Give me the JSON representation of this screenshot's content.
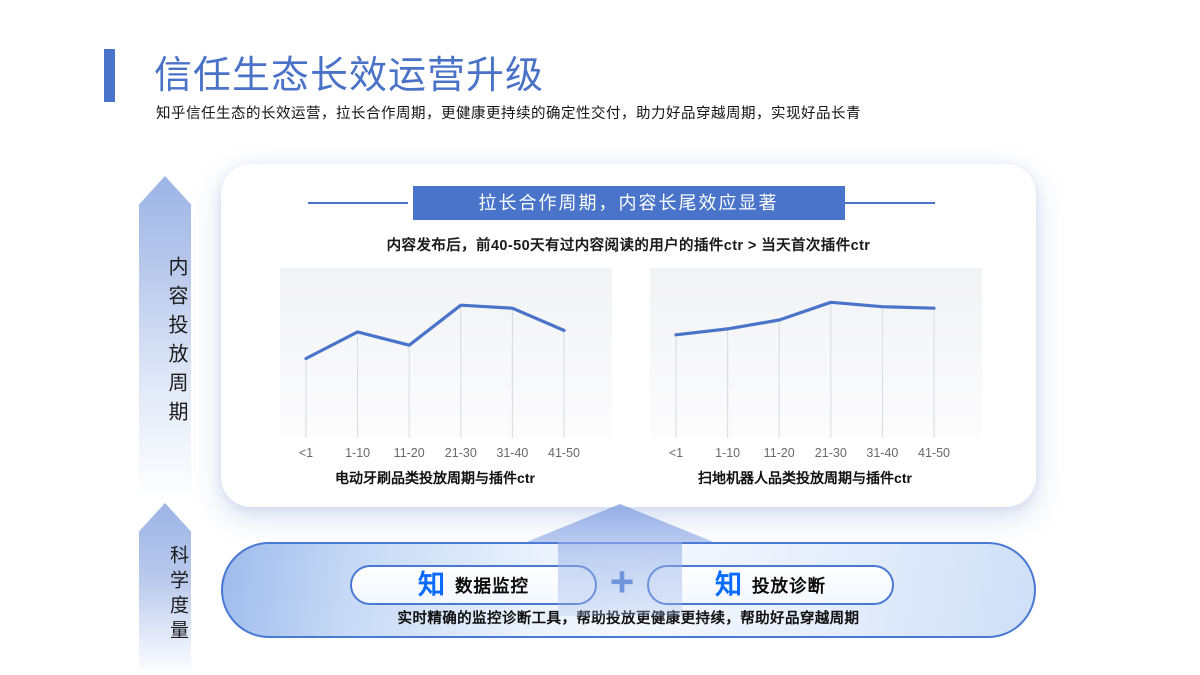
{
  "page": {
    "title": "信任生态长效运营升级",
    "subtitle": "知乎信任生态的长效运营，拉长合作周期，更健康更持续的确定性交付，助力好品穿越周期，实现好品长青"
  },
  "side_arrows": {
    "top_label": "内容投放周期",
    "bottom_label": "科学度量"
  },
  "card": {
    "banner_title": "拉长合作周期，内容长尾效应显著",
    "statement": "内容发布后，前40-50天有过内容阅读的用户的插件ctr > 当天首次插件ctr"
  },
  "chart_data": [
    {
      "type": "line",
      "title": "电动牙刷品类投放周期与插件ctr",
      "categories": [
        "<1",
        "1-10",
        "11-20",
        "21-30",
        "31-40",
        "41-50"
      ],
      "values": [
        0.51,
        0.69,
        0.6,
        0.87,
        0.85,
        0.7
      ],
      "ylim": [
        0,
        1
      ],
      "grid": "drop-lines",
      "line_color": "#4a74c9"
    },
    {
      "type": "line",
      "title": "扫地机器人品类投放周期与插件ctr",
      "categories": [
        "<1",
        "1-10",
        "11-20",
        "21-30",
        "31-40",
        "41-50"
      ],
      "values": [
        0.67,
        0.71,
        0.77,
        0.89,
        0.86,
        0.85
      ],
      "ylim": [
        0,
        1
      ],
      "grid": "drop-lines",
      "line_color": "#4a74c9"
    }
  ],
  "footer": {
    "tools": [
      {
        "icon": "zhihu-logo",
        "glyph": "知",
        "label": "数据监控"
      },
      {
        "icon": "zhihu-logo",
        "glyph": "知",
        "label": "投放诊断"
      }
    ],
    "plus_sign": "+",
    "caption": "实时精确的监控诊断工具，帮助投放更健康更持续，帮助好品穿越周期"
  },
  "colors": {
    "accent_blue": "#4a74c9",
    "zhihu_blue": "#0a6cff",
    "arrow_fill": "#9cb4e5",
    "pill_border": "#4a79d4",
    "grid_line": "#d8dadd"
  }
}
